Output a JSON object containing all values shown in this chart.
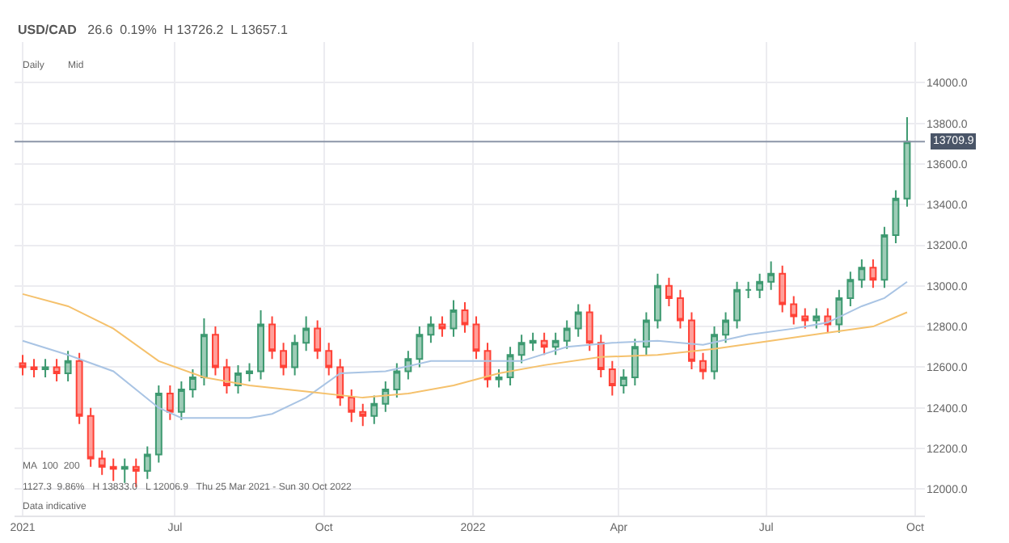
{
  "chart_data": {
    "type": "candlestick",
    "title": "USD/CAD",
    "subtitle": "26.6  0.19%  H 13726.2  L 13657.1",
    "annotations": [
      "Daily",
      "Mid",
      "MA  100  200",
      "1127.3  9.86%   H 13833.0   L 12006.9   Thu 25 Mar 2021 - Sun 30 Oct 2022",
      "Data indicative"
    ],
    "grid": true,
    "xlim": [
      "2021-03-24",
      "2022-10-07"
    ],
    "xticks": [
      {
        "value": "2021-03-29",
        "label": "2021"
      },
      {
        "value": "2021-07-01",
        "label": "Jul"
      },
      {
        "value": "2021-10-01",
        "label": "Oct"
      },
      {
        "value": "2022-01-01",
        "label": "2022"
      },
      {
        "value": "2022-04-01",
        "label": "Apr"
      },
      {
        "value": "2022-07-01",
        "label": "Jul"
      },
      {
        "value": "2022-10-01",
        "label": "Oct"
      }
    ],
    "ylim": [
      11870,
      14200
    ],
    "yticks": [
      {
        "value": 12000,
        "label": "12000.0"
      },
      {
        "value": 12200,
        "label": "12200.0"
      },
      {
        "value": 12400,
        "label": "12400.0"
      },
      {
        "value": 12600,
        "label": "12600.0"
      },
      {
        "value": 12800,
        "label": "12800.0"
      },
      {
        "value": 13000,
        "label": "13000.0"
      },
      {
        "value": 13200,
        "label": "13200.0"
      },
      {
        "value": 13400,
        "label": "13400.0"
      },
      {
        "value": 13600,
        "label": "13600.0"
      },
      {
        "value": 13800,
        "label": "13800.0"
      },
      {
        "value": 14000,
        "label": "14000.0"
      }
    ],
    "ref_lines": [
      {
        "axis": "y",
        "value": 13709.9,
        "label": "13709.9",
        "color": "#8c96a8"
      }
    ],
    "series": [
      {
        "type": "line",
        "color": "#a9c4e4",
        "x": [
          "2021-03-29",
          "2021-04-26",
          "2021-05-24",
          "2021-06-21",
          "2021-07-05",
          "2021-08-16",
          "2021-08-30",
          "2021-09-20",
          "2021-10-11",
          "2021-11-08",
          "2021-12-06",
          "2022-01-03",
          "2022-01-31",
          "2022-02-28",
          "2022-03-28",
          "2022-04-25",
          "2022-05-23",
          "2022-06-20",
          "2022-07-18",
          "2022-08-08",
          "2022-08-29",
          "2022-09-12",
          "2022-09-26"
        ],
        "values": [
          12730,
          12660,
          12580,
          12400,
          12350,
          12350,
          12370,
          12450,
          12570,
          12580,
          12630,
          12630,
          12630,
          12700,
          12720,
          12730,
          12710,
          12760,
          12790,
          12820,
          12900,
          12940,
          13020
        ]
      },
      {
        "type": "line",
        "color": "#f5c16c",
        "x": [
          "2021-03-29",
          "2021-04-26",
          "2021-05-24",
          "2021-06-21",
          "2021-07-19",
          "2021-08-16",
          "2021-09-20",
          "2021-10-25",
          "2021-11-22",
          "2021-12-20",
          "2022-01-17",
          "2022-02-14",
          "2022-03-21",
          "2022-04-25",
          "2022-05-30",
          "2022-07-04",
          "2022-08-08",
          "2022-09-05",
          "2022-09-26"
        ],
        "values": [
          12960,
          12900,
          12790,
          12630,
          12550,
          12510,
          12480,
          12450,
          12470,
          12510,
          12570,
          12610,
          12650,
          12660,
          12690,
          12730,
          12770,
          12800,
          12870
        ]
      },
      {
        "x": [
          "2021-03-29",
          "2021-04-05",
          "2021-04-12",
          "2021-04-19",
          "2021-04-26",
          "2021-05-03",
          "2021-05-10",
          "2021-05-17",
          "2021-05-24",
          "2021-05-31",
          "2021-06-07",
          "2021-06-14",
          "2021-06-21",
          "2021-06-28",
          "2021-07-05",
          "2021-07-12",
          "2021-07-19",
          "2021-07-26",
          "2021-08-02",
          "2021-08-09",
          "2021-08-16",
          "2021-08-23",
          "2021-08-30",
          "2021-09-06",
          "2021-09-13",
          "2021-09-20",
          "2021-09-27",
          "2021-10-04",
          "2021-10-11",
          "2021-10-18",
          "2021-10-25",
          "2021-11-01",
          "2021-11-08",
          "2021-11-15",
          "2021-11-22",
          "2021-11-29",
          "2021-12-06",
          "2021-12-13",
          "2021-12-20",
          "2021-12-27",
          "2022-01-03",
          "2022-01-10",
          "2022-01-17",
          "2022-01-24",
          "2022-01-31",
          "2022-02-07",
          "2022-02-14",
          "2022-02-21",
          "2022-02-28",
          "2022-03-07",
          "2022-03-14",
          "2022-03-21",
          "2022-03-28",
          "2022-04-04",
          "2022-04-11",
          "2022-04-18",
          "2022-04-25",
          "2022-05-02",
          "2022-05-09",
          "2022-05-16",
          "2022-05-23",
          "2022-05-30",
          "2022-06-06",
          "2022-06-13",
          "2022-06-20",
          "2022-06-27",
          "2022-07-04",
          "2022-07-11",
          "2022-07-18",
          "2022-07-25",
          "2022-08-01",
          "2022-08-08",
          "2022-08-15",
          "2022-08-22",
          "2022-08-29",
          "2022-09-05",
          "2022-09-12",
          "2022-09-19",
          "2022-09-26"
        ],
        "ohlc": [
          [
            12620,
            12660,
            12560,
            12600
          ],
          [
            12600,
            12640,
            12550,
            12590
          ],
          [
            12590,
            12640,
            12550,
            12600
          ],
          [
            12600,
            12640,
            12530,
            12570
          ],
          [
            12570,
            12680,
            12530,
            12630
          ],
          [
            12630,
            12670,
            12320,
            12360
          ],
          [
            12360,
            12400,
            12110,
            12150
          ],
          [
            12150,
            12190,
            12070,
            12110
          ],
          [
            12110,
            12150,
            12040,
            12100
          ],
          [
            12100,
            12150,
            12030,
            12110
          ],
          [
            12110,
            12150,
            12010,
            12090
          ],
          [
            12090,
            12210,
            12050,
            12170
          ],
          [
            12170,
            12510,
            12130,
            12470
          ],
          [
            12470,
            12510,
            12340,
            12380
          ],
          [
            12380,
            12530,
            12340,
            12490
          ],
          [
            12490,
            12590,
            12450,
            12550
          ],
          [
            12550,
            12840,
            12510,
            12760
          ],
          [
            12760,
            12800,
            12560,
            12600
          ],
          [
            12600,
            12640,
            12470,
            12510
          ],
          [
            12510,
            12610,
            12470,
            12570
          ],
          [
            12570,
            12620,
            12530,
            12580
          ],
          [
            12580,
            12880,
            12540,
            12810
          ],
          [
            12810,
            12850,
            12640,
            12680
          ],
          [
            12680,
            12720,
            12560,
            12600
          ],
          [
            12600,
            12760,
            12560,
            12720
          ],
          [
            12720,
            12850,
            12680,
            12790
          ],
          [
            12790,
            12830,
            12640,
            12680
          ],
          [
            12680,
            12720,
            12560,
            12600
          ],
          [
            12600,
            12640,
            12410,
            12450
          ],
          [
            12450,
            12490,
            12330,
            12380
          ],
          [
            12380,
            12420,
            12310,
            12360
          ],
          [
            12360,
            12460,
            12320,
            12420
          ],
          [
            12420,
            12530,
            12380,
            12490
          ],
          [
            12490,
            12620,
            12450,
            12580
          ],
          [
            12580,
            12680,
            12540,
            12640
          ],
          [
            12640,
            12800,
            12600,
            12760
          ],
          [
            12760,
            12850,
            12720,
            12810
          ],
          [
            12810,
            12850,
            12750,
            12790
          ],
          [
            12790,
            12930,
            12750,
            12880
          ],
          [
            12880,
            12920,
            12770,
            12810
          ],
          [
            12810,
            12850,
            12640,
            12680
          ],
          [
            12680,
            12720,
            12500,
            12540
          ],
          [
            12540,
            12590,
            12500,
            12550
          ],
          [
            12550,
            12700,
            12510,
            12660
          ],
          [
            12660,
            12760,
            12620,
            12720
          ],
          [
            12720,
            12770,
            12680,
            12730
          ],
          [
            12730,
            12770,
            12660,
            12700
          ],
          [
            12700,
            12770,
            12660,
            12730
          ],
          [
            12730,
            12830,
            12690,
            12790
          ],
          [
            12790,
            12910,
            12750,
            12870
          ],
          [
            12870,
            12910,
            12680,
            12720
          ],
          [
            12720,
            12760,
            12550,
            12590
          ],
          [
            12590,
            12630,
            12460,
            12510
          ],
          [
            12510,
            12590,
            12470,
            12550
          ],
          [
            12550,
            12740,
            12510,
            12700
          ],
          [
            12700,
            12870,
            12660,
            12830
          ],
          [
            12830,
            13060,
            12790,
            13000
          ],
          [
            13000,
            13040,
            12900,
            12940
          ],
          [
            12940,
            12980,
            12790,
            12830
          ],
          [
            12830,
            12870,
            12590,
            12630
          ],
          [
            12630,
            12670,
            12540,
            12580
          ],
          [
            12580,
            12800,
            12540,
            12760
          ],
          [
            12760,
            12870,
            12720,
            12830
          ],
          [
            12830,
            13020,
            12790,
            12980
          ],
          [
            12980,
            13020,
            12940,
            12980
          ],
          [
            12980,
            13060,
            12940,
            13020
          ],
          [
            13020,
            13120,
            12980,
            13060
          ],
          [
            13060,
            13100,
            12870,
            12910
          ],
          [
            12910,
            12950,
            12810,
            12850
          ],
          [
            12850,
            12890,
            12790,
            12830
          ],
          [
            12830,
            12890,
            12790,
            12850
          ],
          [
            12850,
            12890,
            12770,
            12810
          ],
          [
            12810,
            12980,
            12770,
            12940
          ],
          [
            12940,
            13070,
            12900,
            13030
          ],
          [
            13030,
            13130,
            12990,
            13090
          ],
          [
            13090,
            13130,
            12990,
            13030
          ],
          [
            13030,
            13290,
            12990,
            13250
          ],
          [
            13250,
            13470,
            13210,
            13430
          ],
          [
            13430,
            13830,
            13390,
            13710
          ]
        ]
      }
    ]
  }
}
